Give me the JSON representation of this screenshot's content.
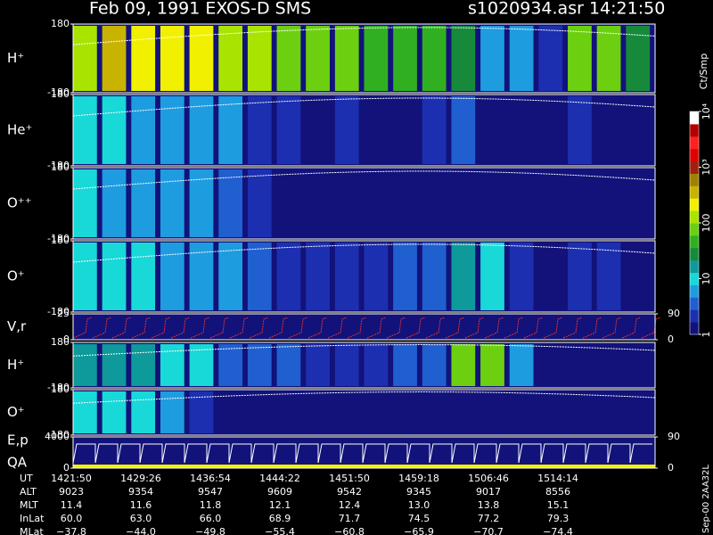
{
  "chart_data": {
    "type": "spectrogram",
    "title": "Feb 09, 1991   EXOS-D SMS",
    "file_label": "s1020934.asr  14:21:50",
    "colorbar": {
      "label": "Ct/Smp",
      "range": [
        1,
        10000
      ],
      "ticks": [
        {
          "value": 10000,
          "label": "10⁴"
        },
        {
          "value": 1000,
          "label": "10³"
        },
        100,
        10,
        1
      ],
      "colormap": [
        "#12127a",
        "#1c2fb0",
        "#1f5fd0",
        "#1e9ce0",
        "#18d8d8",
        "#0e9a9a",
        "#168a3a",
        "#30b020",
        "#6cd010",
        "#a8e400",
        "#f0f000",
        "#c8b400",
        "#a08000",
        "#a02010",
        "#e00000",
        "#ff2020",
        "#b00000",
        "#ffffff"
      ]
    },
    "panels": [
      {
        "label": "H⁺",
        "ylim": [
          -180,
          180
        ],
        "yticks": [
          180,
          -180
        ],
        "levels": [
          150,
          300,
          250,
          200,
          180,
          160,
          120,
          90,
          70,
          60,
          50,
          45,
          40,
          30,
          6,
          4,
          2,
          80,
          60,
          20
        ]
      },
      {
        "label": "He⁺",
        "ylim": [
          -180,
          180
        ],
        "yticks": [
          180,
          -180
        ],
        "levels": [
          8,
          7,
          6,
          6,
          5,
          4,
          2,
          1.5,
          1.3,
          1.5,
          1.2,
          1.1,
          1.5,
          3,
          1.2,
          1.1,
          1,
          1.5,
          1.2,
          1
        ]
      },
      {
        "label": "O⁺⁺",
        "ylim": [
          -180,
          180
        ],
        "yticks": [
          180,
          -180
        ],
        "levels": [
          7,
          6,
          5,
          5,
          4,
          3,
          1.5,
          1.3,
          1.2,
          1.3,
          1.1,
          1.1,
          1.2,
          1.3,
          1.1,
          1,
          1,
          1,
          1,
          1
        ]
      },
      {
        "label": "O⁺",
        "ylim": [
          -180,
          180
        ],
        "yticks": [
          180,
          -180
        ],
        "levels": [
          9,
          8,
          7,
          6,
          6,
          5,
          3,
          2,
          2,
          2,
          1.5,
          3,
          2.5,
          12,
          10,
          1.5,
          1.2,
          2,
          1.5,
          1
        ]
      },
      {
        "label": "H⁺",
        "ylim": [
          -180,
          180
        ],
        "yticks": [
          180,
          -180
        ],
        "levels": [
          15,
          14,
          12,
          10,
          9,
          3,
          3,
          2.5,
          2,
          2,
          1.5,
          3,
          3,
          80,
          70,
          5,
          1.2,
          1,
          1,
          1
        ]
      },
      {
        "label": "O⁺",
        "ylim": [
          -180,
          180
        ],
        "yticks": [
          180,
          -180
        ],
        "levels": [
          10,
          9,
          8,
          6,
          2,
          1.2,
          1.1,
          1.1,
          1,
          1,
          1,
          1,
          1,
          1,
          1,
          1,
          1,
          1,
          1,
          1
        ]
      }
    ],
    "vr": {
      "label": "V,r",
      "ylim": [
        0,
        25
      ],
      "yticks": [
        25,
        0
      ],
      "y2lim": [
        0,
        90
      ],
      "y2ticks": [
        90,
        0
      ]
    },
    "ep": {
      "label": "E,p",
      "sublabel": "QA",
      "ylim": [
        0,
        4000
      ],
      "yticks": [
        4000,
        0
      ],
      "y2lim": [
        0,
        90
      ],
      "y2ticks": [
        90,
        0
      ]
    },
    "ephemeris": [
      {
        "label": "UT",
        "values": [
          "1421:50",
          "1429:26",
          "1436:54",
          "1444:22",
          "1451:50",
          "1459:18",
          "1506:46",
          "1514:14"
        ]
      },
      {
        "label": "ALT",
        "values": [
          "9023",
          "9354",
          "9547",
          "9609",
          "9542",
          "9345",
          "9017",
          "8556"
        ]
      },
      {
        "label": "MLT",
        "values": [
          "11.4",
          "11.6",
          "11.8",
          "12.1",
          "12.4",
          "13.0",
          "13.8",
          "15.1"
        ]
      },
      {
        "label": "InLat",
        "values": [
          "60.0",
          "63.0",
          "66.0",
          "68.9",
          "71.7",
          "74.5",
          "77.2",
          "79.3"
        ]
      },
      {
        "label": "MLat",
        "values": [
          "−37.8",
          "−44.0",
          "−49.8",
          "−55.4",
          "−60.8",
          "−65.9",
          "−70.7",
          "−74.4"
        ]
      }
    ],
    "footer": "Sep-00  2AA32L"
  }
}
